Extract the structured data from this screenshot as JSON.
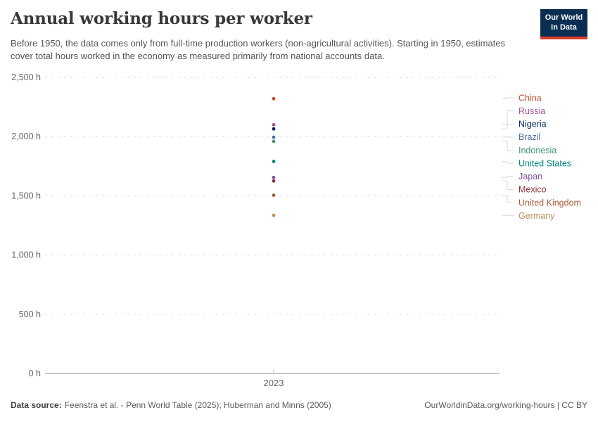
{
  "header": {
    "title": "Annual working hours per worker",
    "subtitle": "Before 1950, the data comes only from full-time production workers (non-agricultural activities). Starting in 1950, estimates cover total hours worked in the economy as measured primarily from national accounts data.",
    "logo": {
      "line1": "Our World",
      "line2": "in Data",
      "bg_color": "#0A2E52",
      "accent_color": "#DC3C2B"
    }
  },
  "chart_data": {
    "type": "scatter",
    "title": "Annual working hours per worker",
    "x_categories": [
      "2023"
    ],
    "x_tick_label": "2023",
    "ylabel": "",
    "ylim": [
      0,
      2500
    ],
    "yticks": [
      {
        "value": 0,
        "label": "0 h"
      },
      {
        "value": 500,
        "label": "500 h"
      },
      {
        "value": 1000,
        "label": "1,000 h"
      },
      {
        "value": 1500,
        "label": "1,500 h"
      },
      {
        "value": 2000,
        "label": "2,000 h"
      },
      {
        "value": 2500,
        "label": "2,500 h"
      }
    ],
    "grid": "horizontal-dashed",
    "legend_position": "right",
    "series": [
      {
        "name": "China",
        "value": 2320,
        "color": "#C14A2E"
      },
      {
        "name": "Russia",
        "value": 2100,
        "color": "#A2559C"
      },
      {
        "name": "Nigeria",
        "value": 2065,
        "color": "#00295B"
      },
      {
        "name": "Brazil",
        "value": 1995,
        "color": "#4C6A9C"
      },
      {
        "name": "Indonesia",
        "value": 1960,
        "color": "#3E9678"
      },
      {
        "name": "United States",
        "value": 1790,
        "color": "#00847E"
      },
      {
        "name": "Japan",
        "value": 1655,
        "color": "#7D4FA3"
      },
      {
        "name": "Mexico",
        "value": 1625,
        "color": "#883039"
      },
      {
        "name": "United Kingdom",
        "value": 1505,
        "color": "#A85A38"
      },
      {
        "name": "Germany",
        "value": 1335,
        "color": "#BC8E5A"
      }
    ],
    "colors": {
      "grid": "#dddddd",
      "axis": "#8f8f8f",
      "tick_text": "#636363",
      "leader": "#d9d9d9"
    }
  },
  "footer": {
    "datasource_label": "Data source:",
    "datasource_value": "Feenstra et al. - Penn World Table (2025); Huberman and Minns (2005)",
    "license": "OurWorldinData.org/working-hours | CC BY"
  }
}
